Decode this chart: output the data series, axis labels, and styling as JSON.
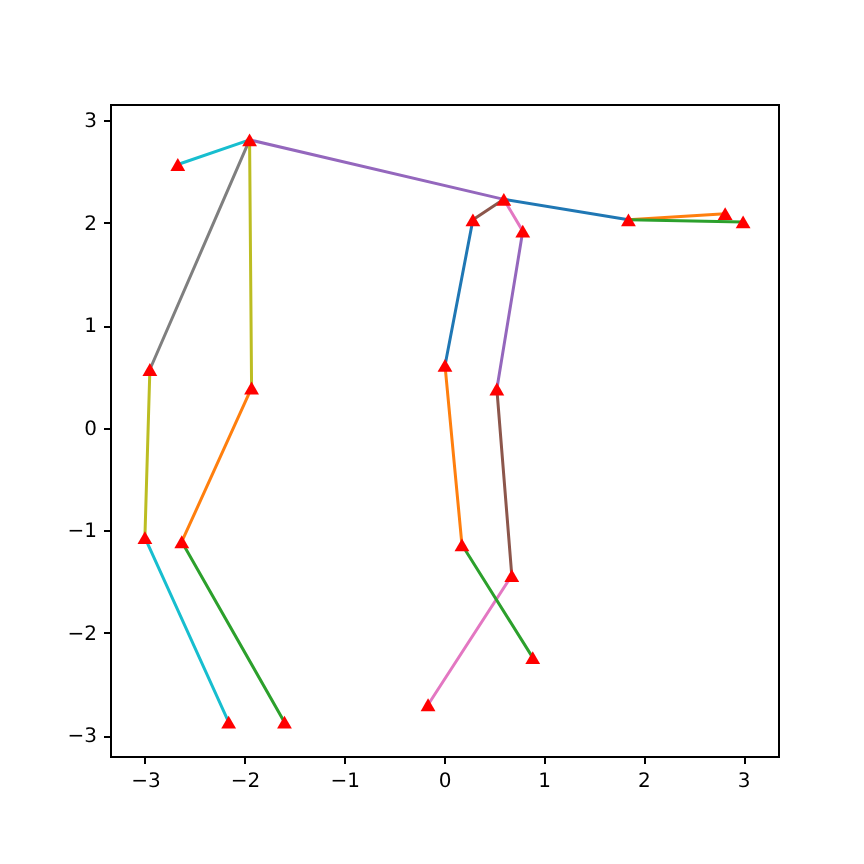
{
  "chart_data": {
    "type": "line",
    "xlim": [
      -3.35,
      3.35
    ],
    "ylim": [
      -3.2,
      3.16
    ],
    "xticks": [
      {
        "value": -3,
        "label": "−3"
      },
      {
        "value": -2,
        "label": "−2"
      },
      {
        "value": -1,
        "label": "−1"
      },
      0,
      1,
      2,
      3
    ],
    "yticks": [
      {
        "value": -3,
        "label": "−3"
      },
      {
        "value": -2,
        "label": "−2"
      },
      {
        "value": -1,
        "label": "−1"
      },
      0,
      1,
      2,
      3
    ],
    "grid": false,
    "line_style": "solid",
    "series": [
      {
        "color": "#17becf",
        "x": [
          -2.67,
          -1.95
        ],
        "values": [
          2.57,
          2.81
        ]
      },
      {
        "color": "#9467bd",
        "x": [
          -1.95,
          0.6
        ],
        "values": [
          2.81,
          2.23
        ]
      },
      {
        "color": "#7f7f7f",
        "x": [
          -1.95,
          -2.95
        ],
        "values": [
          2.81,
          0.57
        ]
      },
      {
        "color": "#bcbd22",
        "x": [
          -1.95,
          -1.93
        ],
        "values": [
          2.81,
          0.39
        ]
      },
      {
        "color": "#bcbd22",
        "x": [
          -2.95,
          -3.0
        ],
        "values": [
          0.57,
          -1.07
        ]
      },
      {
        "color": "#ff7f0e",
        "x": [
          -1.93,
          -2.63
        ],
        "values": [
          0.39,
          -1.11
        ]
      },
      {
        "color": "#17becf",
        "x": [
          -3.0,
          -2.16
        ],
        "values": [
          -1.07,
          -2.87
        ]
      },
      {
        "color": "#2ca02c",
        "x": [
          -2.63,
          -1.6
        ],
        "values": [
          -1.11,
          -2.87
        ]
      },
      {
        "color": "#1f77b4",
        "x": [
          0.6,
          1.85
        ],
        "values": [
          2.23,
          2.03
        ]
      },
      {
        "color": "#1f77b4",
        "x": [
          0.29,
          0.01
        ],
        "values": [
          2.03,
          0.61
        ]
      },
      {
        "color": "#8c564b",
        "x": [
          0.6,
          0.29
        ],
        "values": [
          2.23,
          2.03
        ]
      },
      {
        "color": "#8c564b",
        "x": [
          0.53,
          0.68
        ],
        "values": [
          0.38,
          -1.44
        ]
      },
      {
        "color": "#e377c2",
        "x": [
          0.6,
          0.79
        ],
        "values": [
          2.23,
          1.92
        ]
      },
      {
        "color": "#e377c2",
        "x": [
          0.68,
          -0.16
        ],
        "values": [
          -1.44,
          -2.7
        ]
      },
      {
        "color": "#9467bd",
        "x": [
          0.79,
          0.53
        ],
        "values": [
          1.92,
          0.38
        ]
      },
      {
        "color": "#ff7f0e",
        "x": [
          0.01,
          0.18
        ],
        "values": [
          0.61,
          -1.14
        ]
      },
      {
        "color": "#ff7f0e",
        "x": [
          1.85,
          2.82
        ],
        "values": [
          2.03,
          2.09
        ]
      },
      {
        "color": "#2ca02c",
        "x": [
          0.18,
          0.89
        ],
        "values": [
          -1.14,
          -2.24
        ]
      },
      {
        "color": "#2ca02c",
        "x": [
          1.85,
          3.0
        ],
        "values": [
          2.03,
          2.01
        ]
      },
      {
        "type": "scatter",
        "color": "#ff0000",
        "marker": "triangle",
        "x": [
          -2.67,
          -1.95,
          -2.95,
          -1.93,
          -3.0,
          -2.63,
          -2.16,
          -1.6,
          -0.16,
          0.01,
          0.29,
          0.6,
          0.79,
          0.53,
          0.18,
          0.68,
          0.89,
          1.85,
          2.82,
          3.0
        ],
        "values": [
          2.57,
          2.81,
          0.57,
          0.39,
          -1.07,
          -1.11,
          -2.87,
          -2.87,
          -2.7,
          0.61,
          2.03,
          2.23,
          1.92,
          0.38,
          -1.14,
          -1.44,
          -2.24,
          2.03,
          2.09,
          2.01
        ]
      }
    ]
  }
}
